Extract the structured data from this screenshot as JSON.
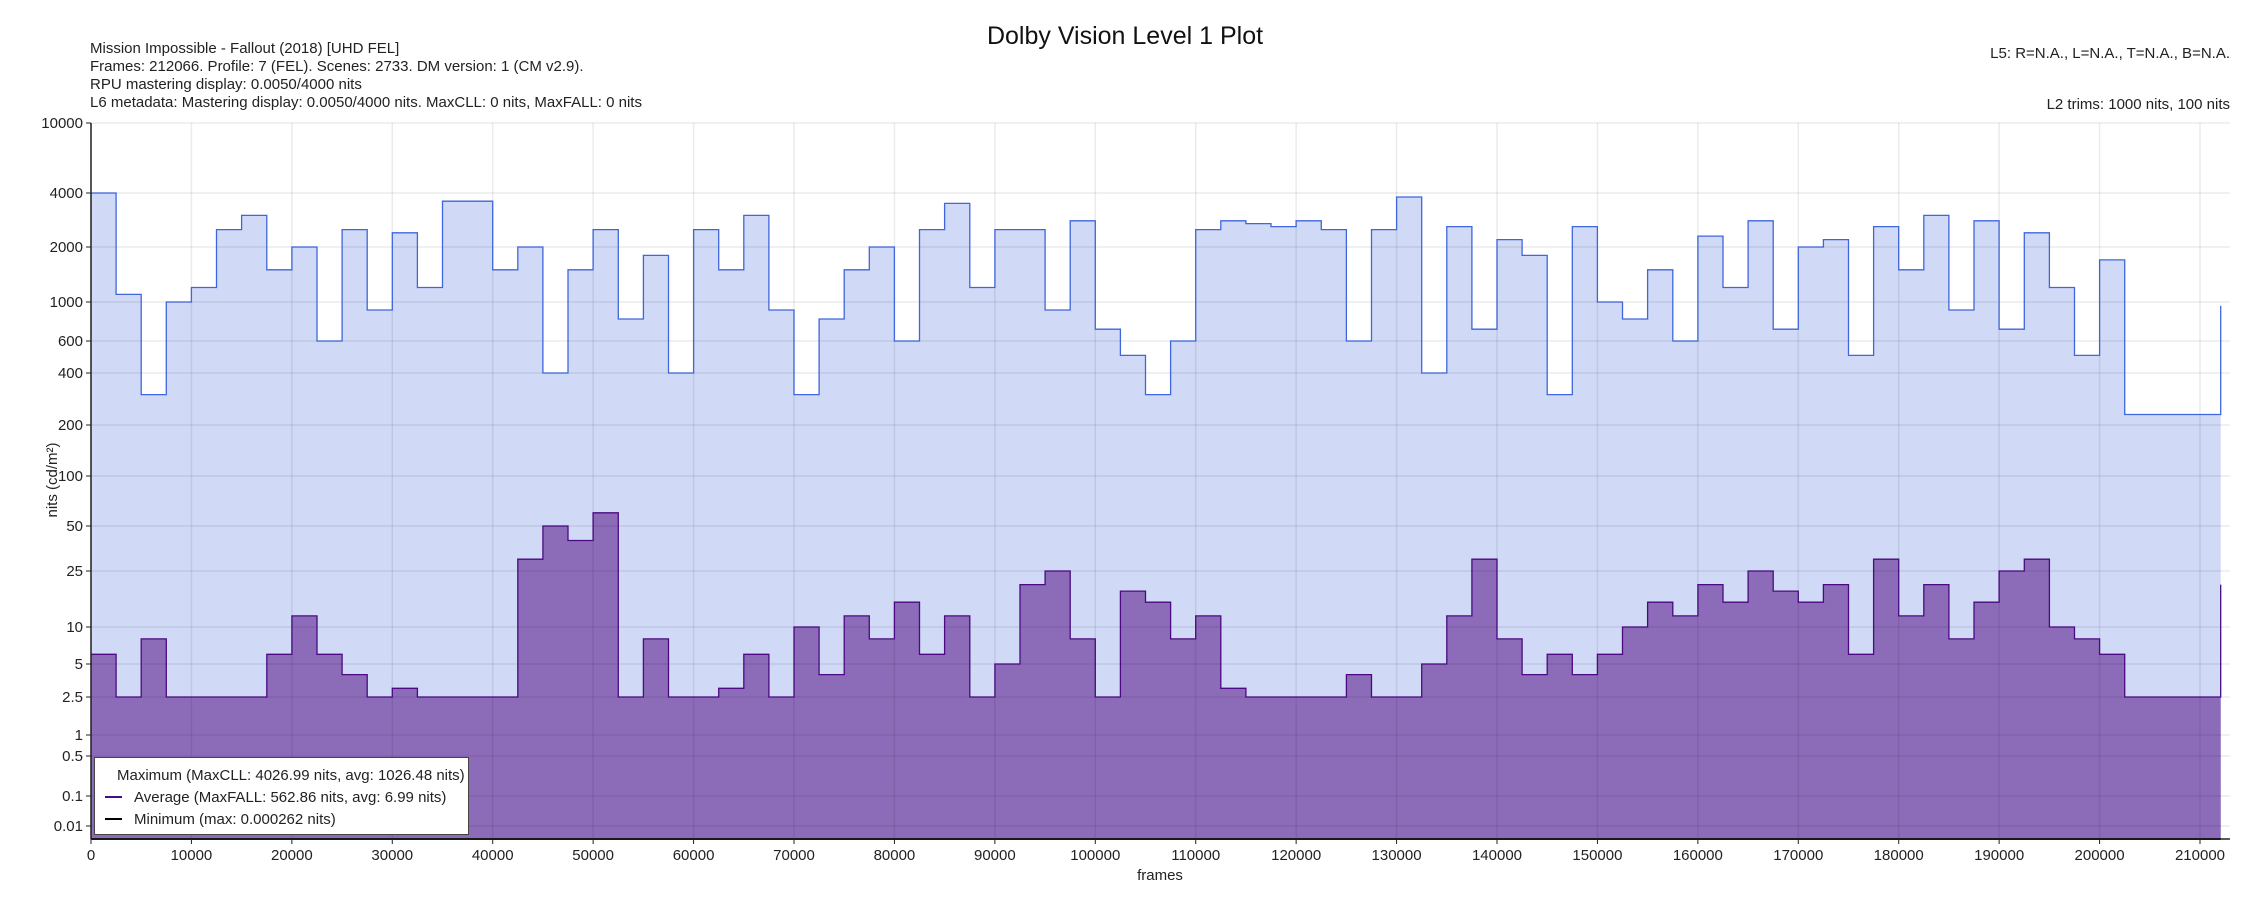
{
  "title": "Dolby Vision Level 1 Plot",
  "info_left": [
    "Mission Impossible - Fallout (2018) [UHD FEL]",
    "Frames: 212066. Profile: 7 (FEL). Scenes: 2733. DM version: 1 (CM v2.9).",
    "RPU mastering display: 0.0050/4000 nits",
    "L6 metadata: Mastering display: 0.0050/4000 nits. MaxCLL: 0 nits, MaxFALL: 0 nits"
  ],
  "info_right": {
    "l5": "L5: R=N.A., L=N.A., T=N.A., B=N.A.",
    "l2": "L2 trims: 1000 nits, 100 nits"
  },
  "colors": {
    "max_line": "#3f66dd",
    "max_fill": "#d0d9f5",
    "avg_line": "#4b0a82",
    "avg_fill": "#8c6bb8",
    "min_line": "#000000"
  },
  "legend": [
    {
      "label": "Maximum (MaxCLL: 4026.99 nits, avg: 1026.48 nits)",
      "color": "#3f66dd"
    },
    {
      "label": "Average (MaxFALL: 562.86 nits, avg: 6.99 nits)",
      "color": "#4b0a82"
    },
    {
      "label": "Minimum (max: 0.000262 nits)",
      "color": "#000000"
    }
  ],
  "chart_data": {
    "type": "line",
    "title": "Dolby Vision Level 1 Plot",
    "xlabel": "frames",
    "ylabel": "nits (cd/m²)",
    "xlim": [
      0,
      212066
    ],
    "ylim": [
      0.005,
      10000
    ],
    "yscale": "custom-log",
    "x_ticks": [
      "0",
      "10000",
      "20000",
      "30000",
      "40000",
      "50000",
      "60000",
      "70000",
      "80000",
      "90000",
      "100000",
      "110000",
      "120000",
      "130000",
      "140000",
      "150000",
      "160000",
      "170000",
      "180000",
      "190000",
      "200000",
      "210000"
    ],
    "y_ticks": [
      "10000",
      "4000",
      "2000",
      "1000",
      "600",
      "400",
      "200",
      "100",
      "50",
      "25",
      "10",
      "5",
      "2.5",
      "1",
      "0.5",
      "0.1",
      "0.01"
    ],
    "grid": true,
    "legend_position": "bottom-left",
    "x": [
      0,
      2500,
      5000,
      7500,
      10000,
      12500,
      15000,
      17500,
      20000,
      22500,
      25000,
      27500,
      30000,
      32500,
      35000,
      37500,
      40000,
      42500,
      45000,
      47500,
      50000,
      52500,
      55000,
      57500,
      60000,
      62500,
      65000,
      67500,
      70000,
      72500,
      75000,
      77500,
      80000,
      82500,
      85000,
      87500,
      90000,
      92500,
      95000,
      97500,
      100000,
      102500,
      105000,
      107500,
      110000,
      112500,
      115000,
      117500,
      120000,
      122500,
      125000,
      127500,
      130000,
      132500,
      135000,
      137500,
      140000,
      142500,
      145000,
      147500,
      150000,
      152500,
      155000,
      157500,
      160000,
      162500,
      165000,
      167500,
      170000,
      172500,
      175000,
      177500,
      180000,
      182500,
      185000,
      187500,
      190000,
      192500,
      195000,
      197500,
      200000,
      202500,
      205000,
      207500,
      210000,
      212066
    ],
    "series": [
      {
        "name": "Maximum",
        "values": [
          4000,
          1100,
          300,
          1000,
          1200,
          2500,
          3000,
          1500,
          2000,
          600,
          2500,
          900,
          2400,
          1200,
          3600,
          3600,
          1500,
          2000,
          400,
          1500,
          2500,
          800,
          1800,
          400,
          2500,
          1500,
          3000,
          900,
          300,
          800,
          1500,
          2000,
          600,
          2500,
          3500,
          1200,
          2500,
          2500,
          900,
          2800,
          700,
          500,
          300,
          600,
          2500,
          2800,
          2700,
          2600,
          2800,
          2500,
          600,
          2500,
          3800,
          400,
          2600,
          700,
          2200,
          1800,
          300,
          2600,
          1000,
          800,
          1500,
          600,
          2300,
          1200,
          2800,
          700,
          2000,
          2200,
          500,
          2600,
          1500,
          3000,
          900,
          2800,
          700,
          2400,
          1200,
          500,
          1700,
          230,
          230,
          230,
          230,
          950
        ]
      },
      {
        "name": "Average",
        "values": [
          6,
          2.5,
          8,
          2.5,
          2.5,
          2.5,
          2.5,
          6,
          12,
          6,
          4,
          2.5,
          3,
          2.5,
          2.5,
          2.5,
          2.5,
          30,
          50,
          40,
          60,
          2.5,
          8,
          2.5,
          2.5,
          3,
          6,
          2.5,
          10,
          4,
          12,
          8,
          15,
          6,
          12,
          2.5,
          5,
          20,
          25,
          8,
          2.5,
          18,
          15,
          8,
          12,
          3,
          2.5,
          2.5,
          2.5,
          2.5,
          4,
          2.5,
          2.5,
          5,
          12,
          30,
          8,
          4,
          6,
          4,
          6,
          10,
          15,
          12,
          20,
          15,
          25,
          18,
          15,
          20,
          6,
          30,
          12,
          20,
          8,
          15,
          25,
          30,
          10,
          8,
          6,
          2.5,
          2.5,
          2.5,
          2.5,
          20
        ]
      },
      {
        "name": "Minimum",
        "values": [
          0.005,
          0.005,
          0.005,
          0.005,
          0.005,
          0.005,
          0.005,
          0.005,
          0.005,
          0.005,
          0.005,
          0.005,
          0.005,
          0.005,
          0.005,
          0.005,
          0.005,
          0.005,
          0.005,
          0.005,
          0.005,
          0.005,
          0.005,
          0.005,
          0.005,
          0.005,
          0.005,
          0.005,
          0.005,
          0.005,
          0.005,
          0.005,
          0.005,
          0.005,
          0.005,
          0.005,
          0.005,
          0.005,
          0.005,
          0.005,
          0.005,
          0.005,
          0.005,
          0.005,
          0.005,
          0.005,
          0.005,
          0.005,
          0.005,
          0.005,
          0.005,
          0.005,
          0.005,
          0.005,
          0.005,
          0.005,
          0.005,
          0.005,
          0.005,
          0.005,
          0.005,
          0.005,
          0.005,
          0.005,
          0.005,
          0.005,
          0.005,
          0.005,
          0.005,
          0.005,
          0.005,
          0.005,
          0.005,
          0.005,
          0.005,
          0.005,
          0.005,
          0.005,
          0.005,
          0.005,
          0.005,
          0.005,
          0.005,
          0.005,
          0.005,
          0.005
        ]
      }
    ]
  }
}
